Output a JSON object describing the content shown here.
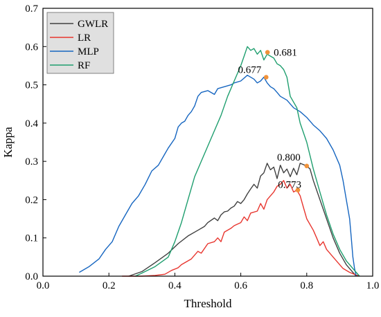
{
  "chart_data": {
    "type": "line",
    "xlabel": "Threshold",
    "ylabel": "Kappa",
    "xlim": [
      0.0,
      1.0
    ],
    "ylim": [
      0.0,
      0.7
    ],
    "x_ticks": [
      "0.0",
      "0.2",
      "0.4",
      "0.6",
      "0.8",
      "1.0"
    ],
    "y_ticks": [
      "0.0",
      "0.1",
      "0.2",
      "0.3",
      "0.4",
      "0.5",
      "0.6",
      "0.7"
    ],
    "grid": false,
    "legend_position": "top-left",
    "series": [
      {
        "name": "GWLR",
        "color": "#404040",
        "points": [
          [
            0.26,
            0.0
          ],
          [
            0.3,
            0.012
          ],
          [
            0.34,
            0.035
          ],
          [
            0.38,
            0.06
          ],
          [
            0.41,
            0.085
          ],
          [
            0.44,
            0.105
          ],
          [
            0.47,
            0.12
          ],
          [
            0.49,
            0.13
          ],
          [
            0.5,
            0.14
          ],
          [
            0.52,
            0.152
          ],
          [
            0.53,
            0.145
          ],
          [
            0.54,
            0.16
          ],
          [
            0.55,
            0.168
          ],
          [
            0.56,
            0.17
          ],
          [
            0.57,
            0.178
          ],
          [
            0.58,
            0.183
          ],
          [
            0.59,
            0.195
          ],
          [
            0.6,
            0.19
          ],
          [
            0.61,
            0.2
          ],
          [
            0.62,
            0.215
          ],
          [
            0.63,
            0.228
          ],
          [
            0.64,
            0.24
          ],
          [
            0.65,
            0.23
          ],
          [
            0.66,
            0.262
          ],
          [
            0.67,
            0.27
          ],
          [
            0.68,
            0.295
          ],
          [
            0.69,
            0.278
          ],
          [
            0.7,
            0.285
          ],
          [
            0.71,
            0.255
          ],
          [
            0.72,
            0.29
          ],
          [
            0.73,
            0.27
          ],
          [
            0.74,
            0.28
          ],
          [
            0.75,
            0.26
          ],
          [
            0.76,
            0.282
          ],
          [
            0.77,
            0.265
          ],
          [
            0.78,
            0.295
          ],
          [
            0.8,
            0.288
          ],
          [
            0.81,
            0.28
          ],
          [
            0.82,
            0.25
          ],
          [
            0.84,
            0.2
          ],
          [
            0.86,
            0.15
          ],
          [
            0.88,
            0.1
          ],
          [
            0.9,
            0.06
          ],
          [
            0.92,
            0.03
          ],
          [
            0.94,
            0.01
          ],
          [
            0.95,
            0.0
          ]
        ]
      },
      {
        "name": "LR",
        "color": "#e8352e",
        "points": [
          [
            0.24,
            0.0
          ],
          [
            0.3,
            0.0
          ],
          [
            0.34,
            0.002
          ],
          [
            0.37,
            0.005
          ],
          [
            0.39,
            0.015
          ],
          [
            0.41,
            0.022
          ],
          [
            0.42,
            0.03
          ],
          [
            0.45,
            0.045
          ],
          [
            0.47,
            0.065
          ],
          [
            0.48,
            0.06
          ],
          [
            0.5,
            0.085
          ],
          [
            0.52,
            0.09
          ],
          [
            0.53,
            0.1
          ],
          [
            0.54,
            0.09
          ],
          [
            0.55,
            0.115
          ],
          [
            0.57,
            0.125
          ],
          [
            0.58,
            0.132
          ],
          [
            0.6,
            0.14
          ],
          [
            0.61,
            0.155
          ],
          [
            0.62,
            0.145
          ],
          [
            0.63,
            0.165
          ],
          [
            0.65,
            0.17
          ],
          [
            0.66,
            0.19
          ],
          [
            0.67,
            0.175
          ],
          [
            0.68,
            0.2
          ],
          [
            0.69,
            0.21
          ],
          [
            0.7,
            0.22
          ],
          [
            0.71,
            0.235
          ],
          [
            0.72,
            0.24
          ],
          [
            0.73,
            0.25
          ],
          [
            0.74,
            0.23
          ],
          [
            0.75,
            0.24
          ],
          [
            0.76,
            0.22
          ],
          [
            0.77,
            0.225
          ],
          [
            0.78,
            0.21
          ],
          [
            0.79,
            0.18
          ],
          [
            0.8,
            0.15
          ],
          [
            0.82,
            0.12
          ],
          [
            0.83,
            0.1
          ],
          [
            0.84,
            0.08
          ],
          [
            0.85,
            0.09
          ],
          [
            0.86,
            0.07
          ],
          [
            0.88,
            0.05
          ],
          [
            0.9,
            0.03
          ],
          [
            0.91,
            0.02
          ],
          [
            0.93,
            0.01
          ],
          [
            0.95,
            0.003
          ],
          [
            0.96,
            0.0
          ]
        ]
      },
      {
        "name": "MLP",
        "color": "#1565c0",
        "points": [
          [
            0.11,
            0.01
          ],
          [
            0.14,
            0.025
          ],
          [
            0.17,
            0.045
          ],
          [
            0.19,
            0.07
          ],
          [
            0.21,
            0.09
          ],
          [
            0.23,
            0.13
          ],
          [
            0.25,
            0.16
          ],
          [
            0.27,
            0.19
          ],
          [
            0.29,
            0.21
          ],
          [
            0.31,
            0.24
          ],
          [
            0.33,
            0.275
          ],
          [
            0.35,
            0.29
          ],
          [
            0.37,
            0.32
          ],
          [
            0.38,
            0.335
          ],
          [
            0.4,
            0.36
          ],
          [
            0.41,
            0.39
          ],
          [
            0.42,
            0.4
          ],
          [
            0.43,
            0.405
          ],
          [
            0.44,
            0.42
          ],
          [
            0.45,
            0.43
          ],
          [
            0.46,
            0.445
          ],
          [
            0.47,
            0.47
          ],
          [
            0.48,
            0.48
          ],
          [
            0.5,
            0.485
          ],
          [
            0.52,
            0.475
          ],
          [
            0.53,
            0.49
          ],
          [
            0.55,
            0.495
          ],
          [
            0.57,
            0.5
          ],
          [
            0.58,
            0.505
          ],
          [
            0.6,
            0.51
          ],
          [
            0.62,
            0.525
          ],
          [
            0.64,
            0.515
          ],
          [
            0.65,
            0.505
          ],
          [
            0.66,
            0.51
          ],
          [
            0.67,
            0.52
          ],
          [
            0.68,
            0.505
          ],
          [
            0.69,
            0.495
          ],
          [
            0.7,
            0.49
          ],
          [
            0.71,
            0.48
          ],
          [
            0.72,
            0.47
          ],
          [
            0.74,
            0.46
          ],
          [
            0.75,
            0.45
          ],
          [
            0.76,
            0.44
          ],
          [
            0.78,
            0.43
          ],
          [
            0.8,
            0.415
          ],
          [
            0.82,
            0.395
          ],
          [
            0.84,
            0.38
          ],
          [
            0.86,
            0.36
          ],
          [
            0.88,
            0.33
          ],
          [
            0.9,
            0.29
          ],
          [
            0.91,
            0.25
          ],
          [
            0.92,
            0.2
          ],
          [
            0.93,
            0.15
          ],
          [
            0.935,
            0.1
          ],
          [
            0.94,
            0.05
          ],
          [
            0.945,
            0.02
          ],
          [
            0.95,
            0.0
          ]
        ]
      },
      {
        "name": "RF",
        "color": "#1e9e6e",
        "points": [
          [
            0.28,
            0.0
          ],
          [
            0.3,
            0.008
          ],
          [
            0.34,
            0.025
          ],
          [
            0.38,
            0.05
          ],
          [
            0.4,
            0.09
          ],
          [
            0.42,
            0.14
          ],
          [
            0.44,
            0.2
          ],
          [
            0.46,
            0.26
          ],
          [
            0.48,
            0.3
          ],
          [
            0.5,
            0.34
          ],
          [
            0.52,
            0.38
          ],
          [
            0.54,
            0.42
          ],
          [
            0.56,
            0.47
          ],
          [
            0.58,
            0.51
          ],
          [
            0.6,
            0.55
          ],
          [
            0.61,
            0.575
          ],
          [
            0.62,
            0.6
          ],
          [
            0.63,
            0.59
          ],
          [
            0.64,
            0.595
          ],
          [
            0.65,
            0.58
          ],
          [
            0.66,
            0.59
          ],
          [
            0.67,
            0.565
          ],
          [
            0.68,
            0.58
          ],
          [
            0.69,
            0.575
          ],
          [
            0.7,
            0.57
          ],
          [
            0.71,
            0.555
          ],
          [
            0.72,
            0.55
          ],
          [
            0.73,
            0.54
          ],
          [
            0.74,
            0.52
          ],
          [
            0.75,
            0.47
          ],
          [
            0.77,
            0.44
          ],
          [
            0.78,
            0.4
          ],
          [
            0.8,
            0.35
          ],
          [
            0.82,
            0.28
          ],
          [
            0.84,
            0.22
          ],
          [
            0.86,
            0.16
          ],
          [
            0.88,
            0.11
          ],
          [
            0.9,
            0.07
          ],
          [
            0.92,
            0.04
          ],
          [
            0.94,
            0.02
          ],
          [
            0.95,
            0.01
          ],
          [
            0.96,
            0.0
          ]
        ]
      }
    ],
    "annotations": [
      {
        "label": "0.681",
        "x": 0.681,
        "y": 0.585
      },
      {
        "label": "0.677",
        "x": 0.677,
        "y": 0.52
      },
      {
        "label": "0.800",
        "x": 0.8,
        "y": 0.288
      },
      {
        "label": "0.773",
        "x": 0.773,
        "y": 0.225
      }
    ],
    "marker_color": "#f0923a"
  }
}
